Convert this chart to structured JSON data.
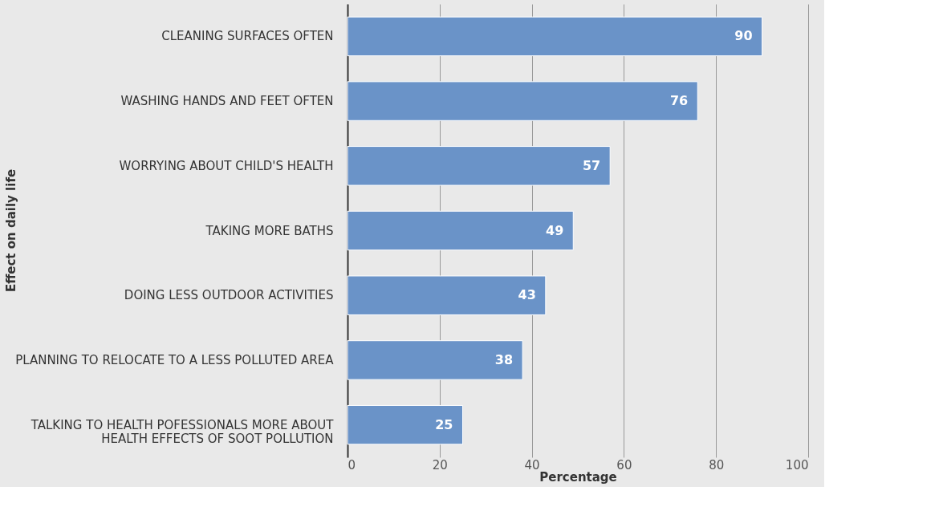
{
  "chart_data": {
    "type": "bar",
    "orientation": "horizontal",
    "xlabel": "Percentage",
    "ylabel": "Effect on daily life",
    "categories": [
      "CLEANING SURFACES OFTEN",
      "WASHING HANDS AND FEET OFTEN",
      "WORRYING ABOUT CHILD'S HEALTH",
      "TAKING MORE BATHS",
      "DOING LESS OUTDOOR ACTIVITIES",
      "PLANNING TO RELOCATE TO A LESS POLLUTED AREA",
      "TALKING TO HEALTH POFESSIONALS MORE ABOUT HEALTH EFFECTS OF SOOT POLLUTION"
    ],
    "values": [
      90,
      76,
      57,
      49,
      43,
      38,
      25
    ],
    "color": "#6a93c8",
    "xlim": [
      0,
      100
    ],
    "xticks": [
      0,
      20,
      40,
      60,
      80,
      100
    ],
    "grid": "x",
    "data_labels": true
  }
}
